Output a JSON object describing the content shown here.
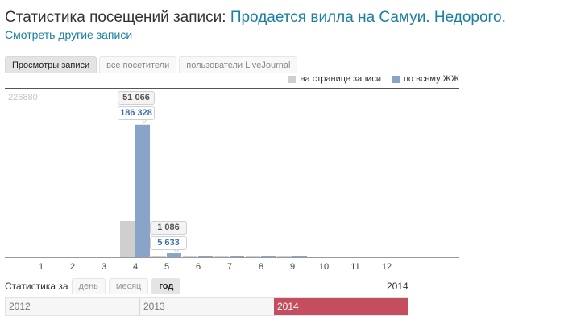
{
  "header": {
    "title_prefix": "Статистика посещений записи:",
    "post_title": "Продается вилла на Самуи. Недорого.",
    "other_posts_link": "Смотреть другие записи"
  },
  "tabs": [
    {
      "label": "Просмотры записи",
      "active": true
    },
    {
      "label": "все посетители",
      "active": false
    },
    {
      "label": "пользователи LiveJournal",
      "active": false
    }
  ],
  "legend": {
    "on_page": "на странице записи",
    "all_lj": "по всему ЖЖ"
  },
  "colors": {
    "on_page": "#cfcfcf",
    "all_lj": "#8aa4c9",
    "accent": "#c44e5e",
    "link": "#1a7fa0"
  },
  "chart_data": {
    "type": "bar",
    "ymax_label": "226880",
    "ylim": [
      0,
      226880
    ],
    "categories": [
      "1",
      "2",
      "3",
      "4",
      "5",
      "6",
      "7",
      "8",
      "9",
      "10",
      "11",
      "12"
    ],
    "series": [
      {
        "name": "на странице записи",
        "values": [
          0,
          0,
          0,
          51066,
          1086,
          300,
          300,
          200,
          200,
          0,
          0,
          0
        ]
      },
      {
        "name": "по всему ЖЖ",
        "values": [
          0,
          0,
          0,
          186328,
          5633,
          2000,
          1500,
          1500,
          1500,
          0,
          0,
          0
        ]
      }
    ],
    "tooltips": [
      {
        "category": "4",
        "on_page": "51 066",
        "all_lj": "186 328"
      },
      {
        "category": "5",
        "on_page": "1 086",
        "all_lj": "5 633"
      }
    ]
  },
  "stats_period": {
    "label": "Статистика за",
    "options": [
      {
        "label": "день",
        "active": false
      },
      {
        "label": "месяц",
        "active": false
      },
      {
        "label": "год",
        "active": true
      }
    ],
    "current_year": "2014"
  },
  "timeline": {
    "years": [
      "2012",
      "2013",
      "2014"
    ],
    "selected": "2014"
  }
}
